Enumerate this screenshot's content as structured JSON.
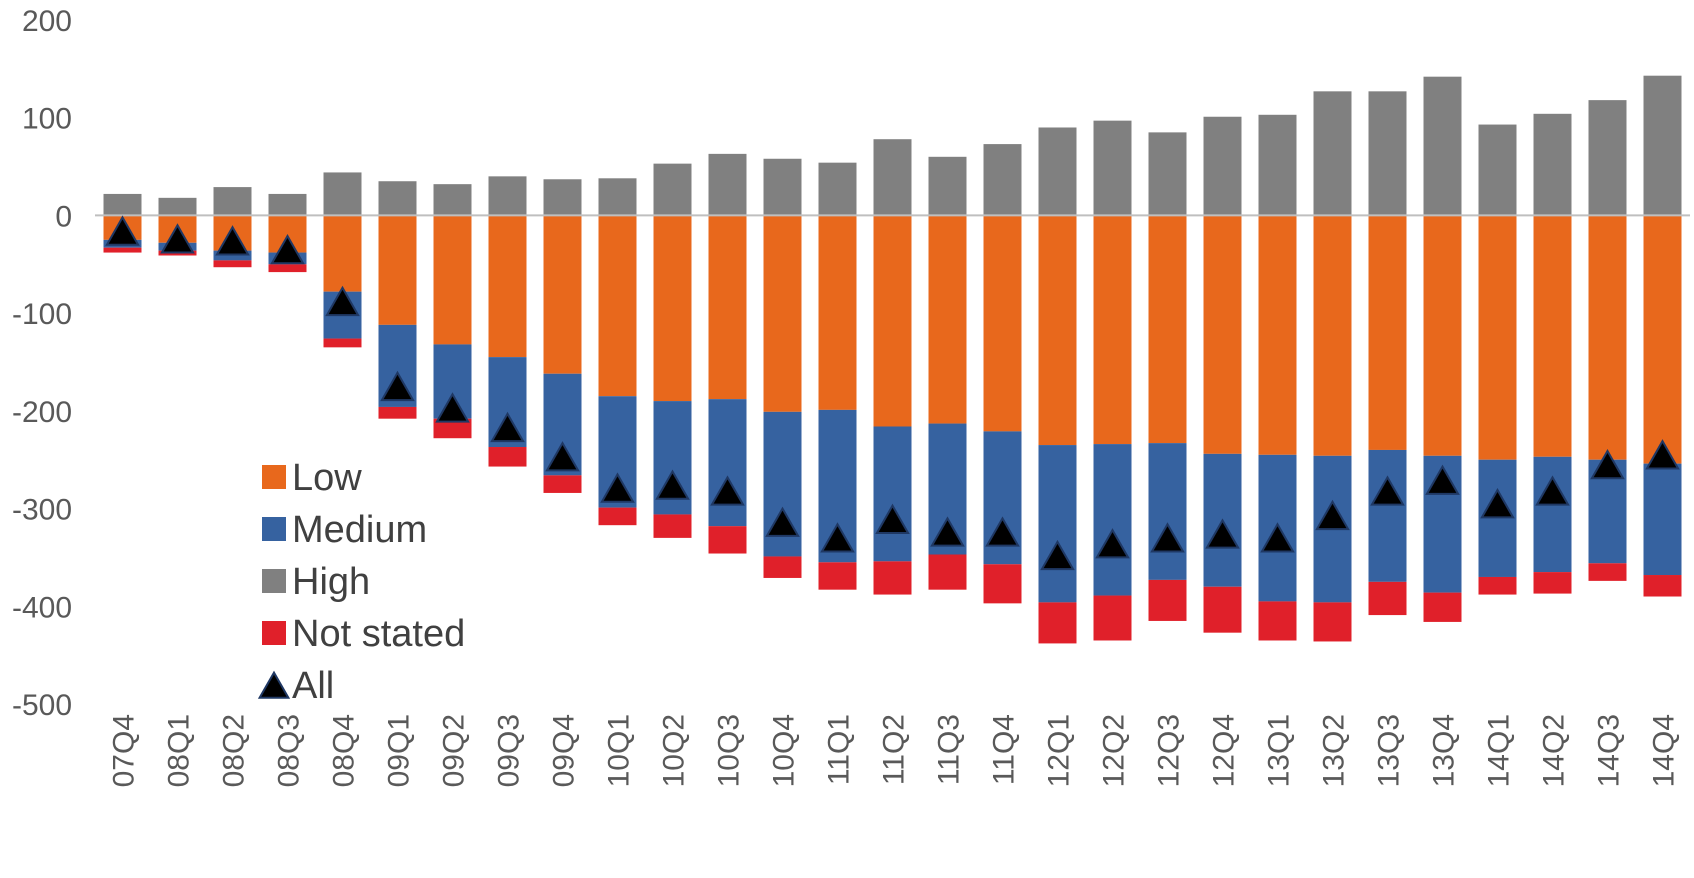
{
  "chart_data": {
    "type": "bar",
    "stacked": true,
    "categories": [
      "07Q4",
      "08Q1",
      "08Q2",
      "08Q3",
      "08Q4",
      "09Q1",
      "09Q2",
      "09Q3",
      "09Q4",
      "10Q1",
      "10Q2",
      "10Q3",
      "10Q4",
      "11Q1",
      "11Q2",
      "11Q3",
      "11Q4",
      "12Q1",
      "12Q2",
      "12Q3",
      "12Q4",
      "13Q1",
      "13Q2",
      "13Q3",
      "13Q4",
      "14Q1",
      "14Q2",
      "14Q3",
      "14Q4"
    ],
    "ylim": [
      -500,
      200
    ],
    "yticks": [
      200,
      100,
      0,
      -100,
      -200,
      -300,
      -400,
      -500
    ],
    "legend_position": "lower-left inside plot",
    "series": [
      {
        "name": "Low",
        "kind": "bar",
        "color": "#E8681C",
        "values": [
          -25,
          -28,
          -36,
          -38,
          -78,
          -112,
          -132,
          -145,
          -162,
          -185,
          -190,
          -188,
          -201,
          -199,
          -216,
          -213,
          -221,
          -235,
          -234,
          -233,
          -244,
          -245,
          -246,
          -240,
          -246,
          -250,
          -247,
          -250,
          -254
        ]
      },
      {
        "name": "Medium",
        "kind": "bar",
        "color": "#3662A0",
        "values": [
          -8,
          -8,
          -10,
          -12,
          -48,
          -84,
          -76,
          -92,
          -104,
          -114,
          -116,
          -130,
          -148,
          -156,
          -138,
          -134,
          -136,
          -161,
          -155,
          -140,
          -136,
          -150,
          -150,
          -135,
          -140,
          -120,
          -118,
          -106,
          -114
        ]
      },
      {
        "name": "High",
        "kind": "bar",
        "color": "#808080",
        "values": [
          22,
          18,
          29,
          22,
          44,
          35,
          32,
          40,
          37,
          38,
          53,
          63,
          58,
          54,
          78,
          60,
          73,
          90,
          97,
          85,
          101,
          103,
          127,
          127,
          142,
          93,
          104,
          118,
          143
        ]
      },
      {
        "name": "Not stated",
        "kind": "bar",
        "color": "#E0202A",
        "values": [
          -5,
          -5,
          -7,
          -8,
          -9,
          -12,
          -20,
          -20,
          -18,
          -18,
          -24,
          -28,
          -22,
          -28,
          -34,
          -36,
          -40,
          -42,
          -46,
          -42,
          -47,
          -40,
          -40,
          -34,
          -30,
          -18,
          -22,
          -18,
          -22
        ]
      },
      {
        "name": "All",
        "kind": "marker",
        "marker": "triangle",
        "color": "#000000",
        "values": [
          -18,
          -26,
          -28,
          -37,
          -90,
          -177,
          -199,
          -219,
          -249,
          -281,
          -278,
          -284,
          -316,
          -332,
          -313,
          -326,
          -326,
          -350,
          -338,
          -332,
          -328,
          -332,
          -309,
          -284,
          -273,
          -297,
          -284,
          -257,
          -247
        ]
      }
    ]
  }
}
